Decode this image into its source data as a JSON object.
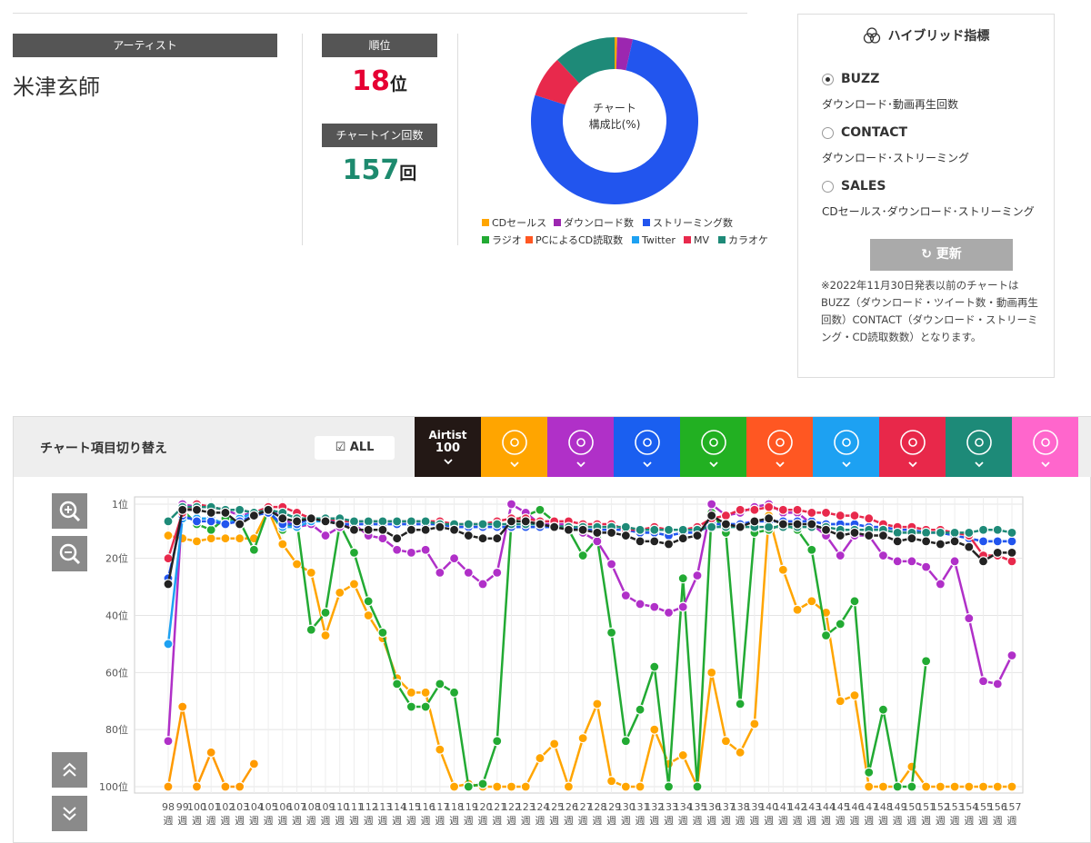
{
  "artist": {
    "label": "アーティスト",
    "name": "米津玄師"
  },
  "rank": {
    "label": "順位",
    "value": 18,
    "unit": "位"
  },
  "chart_in": {
    "label": "チャートイン回数",
    "value": 157,
    "unit": "回"
  },
  "composition": {
    "type": "pie",
    "center_label": [
      "チャート",
      "構成比(%)"
    ],
    "categories": [
      "CDセールス",
      "ダウンロード数",
      "ストリーミング数",
      "ラジオ",
      "PCによるCD読取数",
      "Twitter",
      "MV",
      "カラオケ"
    ],
    "values": [
      0.5,
      3,
      76.5,
      0,
      0,
      0,
      8,
      12
    ],
    "colors": [
      "#ffa500",
      "#9c27b0",
      "#2255ee",
      "#22aa33",
      "#ff5722",
      "#1da1f2",
      "#e8294c",
      "#1e8a78"
    ]
  },
  "hybrid": {
    "title": "ハイブリッド指標",
    "options": [
      {
        "name": "BUZZ",
        "desc": "ダウンロード･動画再生回数",
        "selected": true
      },
      {
        "name": "CONTACT",
        "desc": "ダウンロード･ストリーミング",
        "selected": false
      },
      {
        "name": "SALES",
        "desc": "CDセールス･ダウンロード･ストリーミング",
        "selected": false
      }
    ],
    "button": "更新",
    "note": "※2022年11月30日発表以前のチャートはBUZZ（ダウンロード・ツイート数・動画再生回数）CONTACT（ダウンロード・ストリーミング・CD読取数数）となります。"
  },
  "switcher": {
    "title": "チャート項目切り替え",
    "all": "ALL",
    "tabs": [
      {
        "name": "Airtist",
        "sub": "100",
        "color": "#231815"
      },
      {
        "color": "#ffa500"
      },
      {
        "color": "#b030c8"
      },
      {
        "color": "#1a5ff0"
      },
      {
        "color": "#22b022"
      },
      {
        "color": "#ff5722"
      },
      {
        "color": "#1da1f2"
      },
      {
        "color": "#e8284a"
      },
      {
        "color": "#1d8a78"
      },
      {
        "color": "#ff66cc"
      }
    ]
  },
  "chart_data": {
    "type": "line",
    "grid": true,
    "categories": [
      "98週",
      "99週",
      "100週",
      "101週",
      "102週",
      "103週",
      "104週",
      "105週",
      "106週",
      "107週",
      "108週",
      "109週",
      "110週",
      "111週",
      "112週",
      "113週",
      "114週",
      "115週",
      "116週",
      "117週",
      "118週",
      "119週",
      "120週",
      "121週",
      "122週",
      "123週",
      "124週",
      "125週",
      "126週",
      "127週",
      "128週",
      "129週",
      "130週",
      "131週",
      "132週",
      "133週",
      "134週",
      "135週",
      "136週",
      "137週",
      "138週",
      "139週",
      "140週",
      "141週",
      "142週",
      "143週",
      "144週",
      "145週",
      "146週",
      "147週",
      "148週",
      "149週",
      "150週",
      "151週",
      "152週",
      "153週",
      "154週",
      "155週",
      "156週",
      "157週"
    ],
    "ylim": [
      100,
      1
    ],
    "yticks": [
      {
        "value": 1,
        "label": "1位"
      },
      {
        "value": 20,
        "label": "20位"
      },
      {
        "value": 40,
        "label": "40位"
      },
      {
        "value": 60,
        "label": "60位"
      },
      {
        "value": 80,
        "label": "80位"
      },
      {
        "value": 100,
        "label": "100位"
      }
    ],
    "series": [
      {
        "color": "#ffa500",
        "values": [
          12,
          13,
          14,
          13,
          13,
          13,
          13,
          3,
          15,
          22,
          25,
          47,
          32,
          29,
          40,
          48,
          62,
          67,
          67,
          87,
          100,
          99,
          100,
          100,
          100,
          100,
          90,
          85,
          100,
          83,
          71,
          98,
          100,
          100,
          80,
          92,
          89,
          100,
          60,
          84,
          88,
          78,
          5,
          24,
          38,
          35,
          39,
          70,
          68,
          100,
          100,
          100,
          93,
          100,
          100,
          100,
          100,
          100,
          100,
          100
        ]
      },
      {
        "color": "#ff9a00",
        "values": [
          100,
          72,
          100,
          88,
          100,
          100,
          92,
          null,
          null,
          null,
          null,
          null,
          null,
          null,
          null,
          null,
          null,
          null,
          null,
          null,
          null,
          null,
          null,
          null,
          null,
          null,
          null,
          null,
          null,
          null,
          null,
          null,
          null,
          null,
          null,
          null,
          null,
          null,
          null,
          null,
          null,
          null,
          null,
          null,
          null,
          null,
          null,
          null,
          null,
          null,
          null,
          null,
          null,
          null,
          null,
          null,
          null,
          null,
          null,
          null
        ]
      },
      {
        "color": "#22aa33",
        "values": [
          null,
          3,
          8,
          10,
          6,
          7,
          17,
          3,
          10,
          7,
          45,
          39,
          8,
          18,
          35,
          46,
          64,
          72,
          72,
          64,
          67,
          100,
          99,
          84,
          7,
          5,
          3,
          7,
          10,
          19,
          13,
          46,
          84,
          73,
          58,
          100,
          27,
          100,
          4,
          11,
          71,
          11,
          10,
          8,
          10,
          17,
          47,
          43,
          35,
          95,
          73,
          100,
          100,
          56,
          null,
          null,
          null,
          null,
          null,
          null
        ]
      },
      {
        "color": "#b030c8",
        "values": [
          84,
          1,
          2,
          2,
          3,
          5,
          4,
          2,
          6,
          9,
          8,
          12,
          9,
          8,
          12,
          13,
          17,
          18,
          17,
          25,
          20,
          25,
          29,
          25,
          1,
          4,
          8,
          8,
          8,
          11,
          14,
          22,
          33,
          36,
          37,
          39,
          37,
          26,
          1,
          5,
          4,
          2,
          1,
          4,
          4,
          8,
          12,
          19,
          12,
          12,
          19,
          21,
          21,
          23,
          29,
          21,
          41,
          63,
          64,
          54
        ]
      },
      {
        "color": "#1da1f2",
        "values": [
          50,
          6,
          6,
          6,
          8,
          6,
          4,
          3,
          9,
          9,
          7,
          7,
          8,
          8,
          8,
          8,
          8,
          8,
          8,
          8,
          9,
          9,
          9,
          9,
          9,
          9,
          9,
          9,
          9,
          10,
          10,
          10,
          10,
          11,
          11,
          12,
          11,
          11,
          8,
          8,
          8,
          7,
          7,
          7,
          7,
          7,
          8,
          8,
          8,
          9,
          9,
          10,
          10,
          11,
          11,
          12,
          13,
          14,
          14,
          14
        ]
      },
      {
        "color": "#2255ee",
        "values": [
          27,
          5,
          7,
          7,
          8,
          7,
          5,
          4,
          8,
          8,
          6,
          6,
          8,
          8,
          8,
          8,
          8,
          8,
          8,
          8,
          9,
          9,
          9,
          9,
          9,
          9,
          9,
          9,
          9,
          10,
          10,
          10,
          10,
          11,
          11,
          12,
          11,
          11,
          8,
          8,
          8,
          7,
          7,
          7,
          7,
          7,
          8,
          8,
          8,
          9,
          9,
          10,
          10,
          11,
          11,
          12,
          13,
          14,
          14,
          14
        ]
      },
      {
        "color": "#e8294c",
        "values": [
          20,
          4,
          1,
          2,
          3,
          3,
          4,
          2,
          2,
          4,
          6,
          6,
          7,
          7,
          7,
          7,
          7,
          7,
          7,
          7,
          8,
          8,
          8,
          7,
          6,
          6,
          7,
          7,
          7,
          8,
          8,
          8,
          10,
          10,
          9,
          10,
          10,
          9,
          6,
          5,
          3,
          3,
          2,
          3,
          3,
          4,
          4,
          5,
          5,
          6,
          8,
          9,
          9,
          10,
          10,
          11,
          12,
          19,
          19,
          21
        ]
      },
      {
        "color": "#1e8a78",
        "values": [
          7,
          2,
          2,
          2,
          3,
          3,
          4,
          3,
          4,
          6,
          6,
          6,
          6,
          7,
          7,
          7,
          7,
          7,
          7,
          8,
          8,
          8,
          8,
          8,
          8,
          8,
          8,
          9,
          9,
          9,
          9,
          9,
          9,
          10,
          10,
          10,
          10,
          10,
          9,
          9,
          9,
          9,
          9,
          9,
          9,
          9,
          9,
          10,
          10,
          10,
          10,
          11,
          11,
          11,
          11,
          11,
          11,
          10,
          10,
          11
        ]
      },
      {
        "color": "#222222",
        "values": [
          29,
          3,
          3,
          4,
          4,
          8,
          5,
          3,
          6,
          7,
          6,
          7,
          8,
          10,
          10,
          10,
          13,
          10,
          10,
          9,
          10,
          12,
          13,
          13,
          7,
          7,
          8,
          9,
          10,
          10,
          11,
          11,
          12,
          14,
          14,
          15,
          13,
          12,
          5,
          8,
          9,
          7,
          6,
          8,
          8,
          8,
          10,
          12,
          11,
          12,
          12,
          14,
          13,
          14,
          15,
          14,
          16,
          21,
          18,
          18
        ]
      }
    ]
  }
}
